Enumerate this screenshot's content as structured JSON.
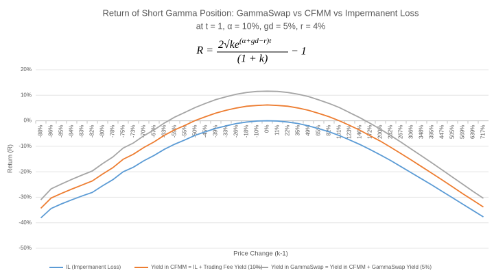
{
  "chart_data": {
    "type": "line",
    "title": "Return of Short Gamma Position: GammaSwap vs CFMM vs Impermanent Loss",
    "subtitle": "at t = 1, α = 10%, gd = 5%, r = 4%",
    "formula": {
      "lhs": "R =",
      "numerator": "2√ke",
      "exponent": "(α+gd−r)t",
      "denominator": "(1 + k)",
      "tail": "− 1"
    },
    "x_label": "Price Change (k-1)",
    "y_label": "Return (R)",
    "categories": [
      "-88%",
      "-86%",
      "-85%",
      "-84%",
      "-83%",
      "-82%",
      "-80%",
      "-78%",
      "-75%",
      "-73%",
      "-70%",
      "-67%",
      "-63%",
      "-59%",
      "-55%",
      "-50%",
      "-45%",
      "-39%",
      "-33%",
      "-26%",
      "-18%",
      "-10%",
      "0%",
      "11%",
      "22%",
      "35%",
      "49%",
      "65%",
      "82%",
      "101%",
      "123%",
      "146%",
      "172%",
      "200%",
      "232%",
      "267%",
      "306%",
      "348%",
      "395%",
      "447%",
      "505%",
      "569%",
      "639%",
      "717%"
    ],
    "series": [
      {
        "name": "IL (Impermanent Loss)",
        "color": "#5b9bd5",
        "values": [
          -38.1,
          -34.4,
          -32.6,
          -31.0,
          -29.5,
          -28.1,
          -25.5,
          -23.1,
          -20.0,
          -18.2,
          -15.7,
          -13.6,
          -11.2,
          -9.2,
          -7.5,
          -5.7,
          -4.3,
          -3.0,
          -2.0,
          -1.1,
          -0.5,
          -0.1,
          0,
          -0.1,
          -0.5,
          -1.1,
          -2.0,
          -3.1,
          -4.3,
          -5.8,
          -7.5,
          -9.3,
          -11.3,
          -13.4,
          -15.6,
          -18.0,
          -20.4,
          -22.8,
          -25.2,
          -27.7,
          -30.2,
          -32.7,
          -35.2,
          -37.7
        ]
      },
      {
        "name": "Yield in CFMM = IL + Trading Fee Yield (10%)",
        "color": "#ed7d31",
        "values": [
          -34.3,
          -30.3,
          -28.5,
          -26.8,
          -25.2,
          -23.6,
          -20.9,
          -18.4,
          -15.1,
          -13.1,
          -10.5,
          -8.3,
          -5.7,
          -3.6,
          -1.8,
          0.1,
          1.6,
          3.0,
          4.1,
          5.0,
          5.7,
          6.0,
          6.2,
          6.0,
          5.7,
          5.0,
          4.1,
          2.9,
          1.6,
          0.0,
          -1.8,
          -3.7,
          -5.9,
          -8.0,
          -10.4,
          -12.9,
          -15.4,
          -18.0,
          -20.6,
          -23.2,
          -25.9,
          -28.6,
          -31.2,
          -33.8
        ]
      },
      {
        "name": "Yield in GammaSwap = Yield in CFMM + GammaSwap Yield (5%)",
        "color": "#a5a5a5",
        "values": [
          -31.0,
          -26.7,
          -24.8,
          -23.0,
          -21.3,
          -19.7,
          -16.8,
          -14.2,
          -10.7,
          -8.7,
          -5.9,
          -3.6,
          -0.9,
          1.4,
          3.3,
          5.2,
          6.8,
          8.3,
          9.4,
          10.4,
          11.1,
          11.5,
          11.6,
          11.5,
          11.1,
          10.4,
          9.5,
          8.2,
          6.8,
          5.2,
          3.2,
          1.2,
          -1.0,
          -3.3,
          -5.8,
          -8.4,
          -11.1,
          -13.8,
          -16.5,
          -19.3,
          -22.1,
          -24.9,
          -27.7,
          -30.4
        ]
      }
    ],
    "ylim": [
      -50,
      20
    ],
    "yticks": [
      {
        "value": -50,
        "label": "-50%"
      },
      {
        "value": -40,
        "label": "-40%"
      },
      {
        "value": -30,
        "label": "-30%"
      },
      {
        "value": -20,
        "label": "-20%"
      },
      {
        "value": -10,
        "label": "-10%"
      },
      {
        "value": 0,
        "label": "0%"
      },
      {
        "value": 10,
        "label": "10%"
      },
      {
        "value": 20,
        "label": "20%"
      }
    ],
    "grid": true,
    "legend": "bottom"
  }
}
